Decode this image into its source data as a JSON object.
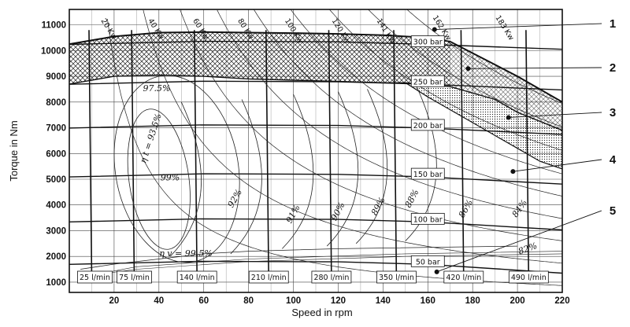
{
  "chart_data": {
    "type": "line",
    "xlabel": "Speed in rpm",
    "ylabel": "Torque in Nm",
    "xlim": [
      0,
      220
    ],
    "ylim": [
      600,
      11600
    ],
    "x_ticks": [
      20,
      40,
      60,
      80,
      100,
      120,
      140,
      160,
      180,
      200,
      220
    ],
    "y_ticks": [
      1000,
      2000,
      3000,
      4000,
      5000,
      6000,
      7000,
      8000,
      9000,
      10000,
      11000
    ],
    "grid": true,
    "pressure_lines": [
      {
        "label": "300 bar",
        "torque": 10300
      },
      {
        "label": "250 bar",
        "torque": 8750
      },
      {
        "label": "200 bar",
        "torque": 7050
      },
      {
        "label": "150 bar",
        "torque": 5150
      },
      {
        "label": "100 bar",
        "torque": 3400
      },
      {
        "label": "50 bar",
        "torque": 1750
      }
    ],
    "flow_lines": [
      {
        "label": "25 l/min",
        "speed": 10
      },
      {
        "label": "75 l/min",
        "speed": 29
      },
      {
        "label": "140 l/min",
        "speed": 57
      },
      {
        "label": "210 l/min",
        "speed": 89
      },
      {
        "label": "280 l/min",
        "speed": 117
      },
      {
        "label": "350 l/min",
        "speed": 146
      },
      {
        "label": "420 l/min",
        "speed": 176
      },
      {
        "label": "490 l/min",
        "speed": 205
      }
    ],
    "power_curves": [
      {
        "label": "20 Kw",
        "kw": 20
      },
      {
        "label": "40 Kw",
        "kw": 40
      },
      {
        "label": "60 Kw",
        "kw": 60
      },
      {
        "label": "80 Kw",
        "kw": 80
      },
      {
        "label": "100 Kw",
        "kw": 100
      },
      {
        "label": "120 Kw",
        "kw": 120
      },
      {
        "label": "141 Kw",
        "kw": 141
      },
      {
        "label": "162 Kw",
        "kw": 162
      },
      {
        "label": "183 Kw",
        "kw": 183
      }
    ],
    "efficiency_labels": {
      "mech_97_5": "97.5%",
      "mech_99": "99%",
      "total_eta": "η t = 93.5%",
      "vol_eta": "η v = 99.5%",
      "total": [
        "92%",
        "91%",
        "90%",
        "89%",
        "88%",
        "86%",
        "84%",
        "82%"
      ]
    },
    "callouts": [
      "1",
      "2",
      "3",
      "4",
      "5"
    ]
  }
}
